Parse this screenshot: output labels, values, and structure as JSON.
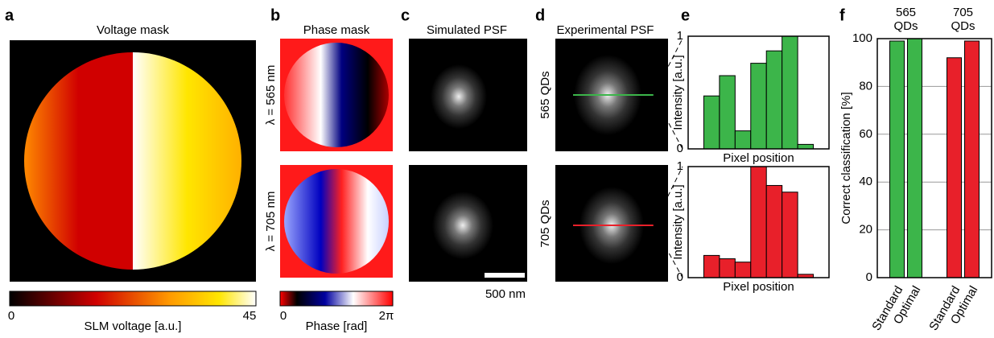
{
  "panel_labels": [
    "a",
    "b",
    "c",
    "d",
    "e",
    "f"
  ],
  "panel_a": {
    "title": "Voltage mask",
    "colorbar_label": "SLM voltage [a.u.]",
    "colorbar_min": "0",
    "colorbar_max": "45"
  },
  "panel_b": {
    "title": "Phase mask",
    "row_labels": [
      "λ = 565 nm",
      "λ = 705 nm"
    ],
    "colorbar_label": "Phase [rad]",
    "colorbar_min": "0",
    "colorbar_max": "2π"
  },
  "panel_c": {
    "title": "Simulated PSF",
    "scale_bar": "500 nm"
  },
  "panel_d": {
    "title": "Experimental PSF",
    "row_labels": [
      "565 QDs",
      "705 QDs"
    ]
  },
  "chart_data": [
    {
      "type": "bar",
      "ylabel": "Intensity [a.u.]",
      "xlabel": "Pixel position",
      "categories": [
        null,
        null,
        null,
        null,
        null,
        null,
        null
      ],
      "values": [
        0.47,
        0.65,
        0.16,
        0.76,
        0.87,
        1.0,
        0.04
      ],
      "color": "#3cb54a",
      "ylim": [
        0,
        1
      ],
      "yticks": [
        0,
        1
      ]
    },
    {
      "type": "bar",
      "ylabel": "Intensity [a.u.]",
      "xlabel": "Pixel position",
      "categories": [
        null,
        null,
        null,
        null,
        null,
        null,
        null
      ],
      "values": [
        0.2,
        0.17,
        0.14,
        1.0,
        0.83,
        0.77,
        0.03
      ],
      "color": "#e8202a",
      "ylim": [
        0,
        1
      ],
      "yticks": [
        0,
        1
      ]
    },
    {
      "type": "bar",
      "ylabel": "Correct classification [%]",
      "categories": [
        "Standard",
        "Optimal"
      ],
      "series": [
        {
          "name": "565 QDs",
          "color": "#3cb54a",
          "values": [
            99,
            100
          ]
        },
        {
          "name": "705 QDs",
          "color": "#e8202a",
          "values": [
            92,
            99
          ]
        }
      ],
      "ylim": [
        0,
        100
      ],
      "yticks": [
        0,
        20,
        40,
        60,
        80,
        100
      ],
      "grid": true
    }
  ]
}
